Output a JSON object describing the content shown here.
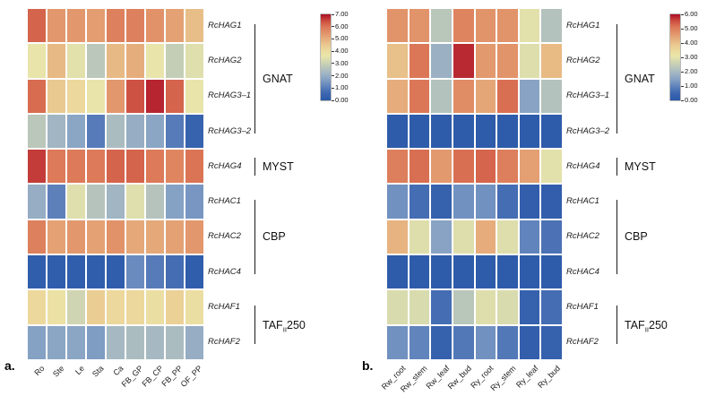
{
  "figure": {
    "panel_a_label": "a.",
    "panel_b_label": "b."
  },
  "colormap": {
    "stops": [
      [
        0.0,
        "#2b59a9"
      ],
      [
        0.08,
        "#3c66b0"
      ],
      [
        0.16,
        "#5e81bb"
      ],
      [
        0.24,
        "#84a0c4"
      ],
      [
        0.32,
        "#a3b7c3"
      ],
      [
        0.4,
        "#bfcab8"
      ],
      [
        0.47,
        "#d9dcae"
      ],
      [
        0.52,
        "#eae5a9"
      ],
      [
        0.58,
        "#ecda9d"
      ],
      [
        0.65,
        "#e9c78e"
      ],
      [
        0.72,
        "#e6ab7a"
      ],
      [
        0.79,
        "#e19068"
      ],
      [
        0.86,
        "#da7354"
      ],
      [
        0.92,
        "#cd4f41"
      ],
      [
        1.0,
        "#ab0e26"
      ]
    ]
  },
  "chart_data": [
    {
      "type": "heatmap",
      "panel": "a",
      "columns": [
        "Ro",
        "Ste",
        "Le",
        "Sta",
        "Ca",
        "FB_GP",
        "FB_CP",
        "FB_PP",
        "OF_PP"
      ],
      "rows": [
        "RcHAG1",
        "RcHAG2",
        "RcHAG3–1",
        "RcHAG3–2",
        "RcHAG4",
        "RcHAC1",
        "RcHAC2",
        "RcHAC4",
        "RcHAF1",
        "RcHAF2"
      ],
      "values": [
        [
          6.2,
          5.4,
          5.4,
          5.3,
          5.8,
          5.8,
          5.5,
          5.2,
          4.7
        ],
        [
          3.6,
          4.8,
          3.5,
          2.7,
          4.8,
          5.0,
          3.6,
          2.9,
          3.4
        ],
        [
          6.1,
          4.5,
          4.1,
          3.6,
          5.4,
          6.4,
          6.8,
          6.2,
          3.6
        ],
        [
          2.7,
          2.2,
          1.8,
          1.0,
          2.4,
          2.0,
          1.8,
          1.0,
          0.4
        ],
        [
          6.6,
          5.9,
          5.9,
          5.9,
          6.2,
          6.2,
          5.9,
          5.7,
          6.0
        ],
        [
          2.0,
          1.1,
          3.4,
          2.6,
          2.2,
          3.4,
          2.6,
          1.7,
          1.5
        ],
        [
          5.8,
          5.2,
          5.4,
          5.2,
          5.5,
          5.1,
          5.1,
          5.2,
          5.4
        ],
        [
          0.2,
          0.2,
          0.2,
          0.2,
          0.2,
          1.3,
          1.0,
          0.7,
          0.2
        ],
        [
          4.1,
          3.8,
          3.1,
          4.4,
          4.1,
          4.1,
          3.9,
          4.3,
          3.9
        ],
        [
          1.7,
          1.8,
          1.8,
          1.6,
          2.3,
          2.4,
          2.3,
          2.4,
          2.0
        ]
      ],
      "scale": {
        "min": 0,
        "max": 7,
        "ticks": [
          "7.00",
          "6.00",
          "5.00",
          "4.00",
          "3.00",
          "2.00",
          "1.00",
          "0.00"
        ]
      },
      "groups": [
        {
          "label": "GNAT",
          "row_start": 0,
          "row_end": 3
        },
        {
          "label": "MYST",
          "row_start": 4,
          "row_end": 4
        },
        {
          "label": "CBP",
          "row_start": 5,
          "row_end": 7
        },
        {
          "label": "TAFII250",
          "label_parts": {
            "pre": "TAF",
            "sub": "II",
            "post": "250"
          },
          "row_start": 8,
          "row_end": 9
        }
      ]
    },
    {
      "type": "heatmap",
      "panel": "b",
      "columns": [
        "Rw_root",
        "Rw_stem",
        "Rw_leaf",
        "Rw_bud",
        "Ry_root",
        "Ry_stem",
        "Ry_leaf",
        "Ry_bud"
      ],
      "rows": [
        "RcHAG1",
        "RcHAG2",
        "RcHAG3–1",
        "RcHAG3–2",
        "RcHAG4",
        "RcHAC1",
        "RcHAC2",
        "RcHAC4",
        "RcHAF1",
        "RcHAF2"
      ],
      "values": [
        [
          4.7,
          4.7,
          2.3,
          4.9,
          4.7,
          4.7,
          3.0,
          2.2
        ],
        [
          4.0,
          5.1,
          1.8,
          5.8,
          4.6,
          4.7,
          2.9,
          4.1
        ],
        [
          4.3,
          5.1,
          2.2,
          4.8,
          4.4,
          5.2,
          1.5,
          2.2
        ],
        [
          0.1,
          0.1,
          0.1,
          0.1,
          0.1,
          0.1,
          0.1,
          0.1
        ],
        [
          5.0,
          5.2,
          4.6,
          5.2,
          5.3,
          5.0,
          4.5,
          3.0
        ],
        [
          1.2,
          0.6,
          0.3,
          1.2,
          1.2,
          0.6,
          0.2,
          0.2
        ],
        [
          4.2,
          2.9,
          1.5,
          2.9,
          4.3,
          2.9,
          1.0,
          0.7
        ],
        [
          0.1,
          0.1,
          0.1,
          0.1,
          0.1,
          0.1,
          0.1,
          0.1
        ],
        [
          2.8,
          2.8,
          0.6,
          2.3,
          2.9,
          2.8,
          0.3,
          0.6
        ],
        [
          1.2,
          1.0,
          0.3,
          0.8,
          1.2,
          0.8,
          0.2,
          0.3
        ]
      ],
      "scale": {
        "min": 0,
        "max": 6,
        "ticks": [
          "6.00",
          "5.00",
          "4.00",
          "3.00",
          "2.00",
          "1.00",
          "0.00"
        ]
      },
      "groups": [
        {
          "label": "GNAT",
          "row_start": 0,
          "row_end": 3
        },
        {
          "label": "MYST",
          "row_start": 4,
          "row_end": 4
        },
        {
          "label": "CBP",
          "row_start": 5,
          "row_end": 7
        },
        {
          "label": "TAFII250",
          "label_parts": {
            "pre": "TAF",
            "sub": "II",
            "post": "250"
          },
          "row_start": 8,
          "row_end": 9
        }
      ]
    }
  ]
}
